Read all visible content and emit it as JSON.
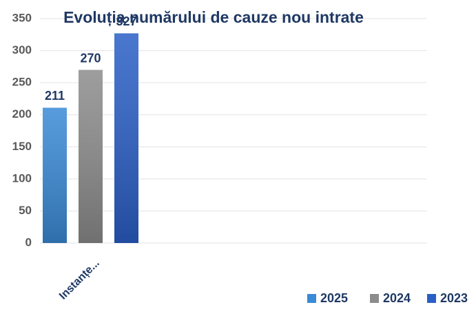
{
  "chart_data": {
    "type": "bar",
    "title": "Evoluția numărului de cauze nou intrate",
    "categories": [
      "Instanțe..."
    ],
    "series": [
      {
        "name": "2025",
        "color": "#3a8ad6",
        "values": [
          211
        ]
      },
      {
        "name": "2024",
        "color": "#8c8c8c",
        "values": [
          270
        ]
      },
      {
        "name": "2023",
        "color": "#2a5fc6",
        "values": [
          327
        ]
      }
    ],
    "ylim": [
      0,
      350
    ],
    "yticks": [
      0,
      50,
      100,
      150,
      200,
      250,
      300,
      350
    ],
    "grid": true,
    "legend": "bottom-right"
  }
}
